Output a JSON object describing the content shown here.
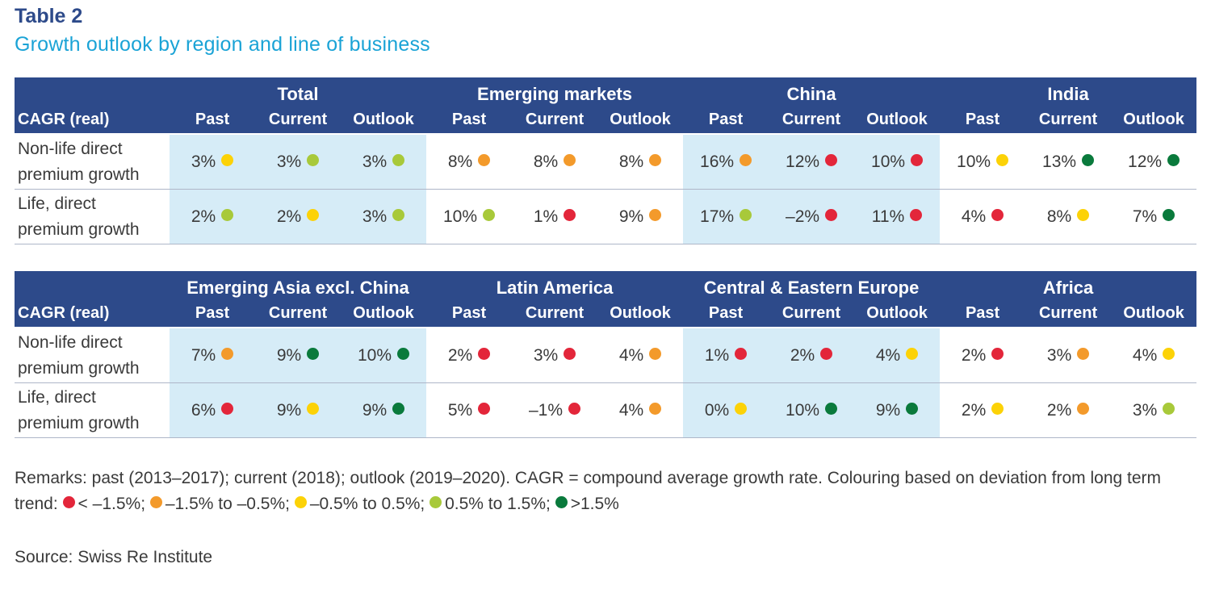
{
  "title": {
    "label": "Table 2",
    "subtitle": "Growth outlook by region and line of business"
  },
  "colors": {
    "header_bg": "#2d4a8a",
    "title_label": "#2d4a8a",
    "subtitle": "#1aa3d6",
    "shaded_cell": "#d6ecf7",
    "red": "#e3263a",
    "orange": "#f39a2b",
    "yellow": "#fcd207",
    "lightgreen": "#a8c93a",
    "darkgreen": "#0a7a3c"
  },
  "tables": [
    {
      "cagr_label": "CAGR (real)",
      "periods": [
        "Past",
        "Current",
        "Outlook"
      ],
      "regions": [
        {
          "name": "Total",
          "rows": [
            [
              {
                "value": "3%",
                "color": "yellow"
              },
              {
                "value": "3%",
                "color": "lightgreen"
              },
              {
                "value": "3%",
                "color": "lightgreen"
              }
            ],
            [
              {
                "value": "2%",
                "color": "lightgreen"
              },
              {
                "value": "2%",
                "color": "yellow"
              },
              {
                "value": "3%",
                "color": "lightgreen"
              }
            ]
          ]
        },
        {
          "name": "Emerging markets",
          "rows": [
            [
              {
                "value": "8%",
                "color": "orange"
              },
              {
                "value": "8%",
                "color": "orange"
              },
              {
                "value": "8%",
                "color": "orange"
              }
            ],
            [
              {
                "value": "10%",
                "color": "lightgreen"
              },
              {
                "value": "1%",
                "color": "red"
              },
              {
                "value": "9%",
                "color": "orange"
              }
            ]
          ]
        },
        {
          "name": "China",
          "rows": [
            [
              {
                "value": "16%",
                "color": "orange"
              },
              {
                "value": "12%",
                "color": "red"
              },
              {
                "value": "10%",
                "color": "red"
              }
            ],
            [
              {
                "value": "17%",
                "color": "lightgreen"
              },
              {
                "value": "–2%",
                "color": "red"
              },
              {
                "value": "11%",
                "color": "red"
              }
            ]
          ]
        },
        {
          "name": "India",
          "rows": [
            [
              {
                "value": "10%",
                "color": "yellow"
              },
              {
                "value": "13%",
                "color": "darkgreen"
              },
              {
                "value": "12%",
                "color": "darkgreen"
              }
            ],
            [
              {
                "value": "4%",
                "color": "red"
              },
              {
                "value": "8%",
                "color": "yellow"
              },
              {
                "value": "7%",
                "color": "darkgreen"
              }
            ]
          ]
        }
      ],
      "row_labels": [
        [
          "Non-life direct",
          "premium growth"
        ],
        [
          "Life, direct",
          "premium growth"
        ]
      ]
    },
    {
      "cagr_label": "CAGR (real)",
      "periods": [
        "Past",
        "Current",
        "Outlook"
      ],
      "regions": [
        {
          "name": "Emerging Asia excl. China",
          "rows": [
            [
              {
                "value": "7%",
                "color": "orange"
              },
              {
                "value": "9%",
                "color": "darkgreen"
              },
              {
                "value": "10%",
                "color": "darkgreen"
              }
            ],
            [
              {
                "value": "6%",
                "color": "red"
              },
              {
                "value": "9%",
                "color": "yellow"
              },
              {
                "value": "9%",
                "color": "darkgreen"
              }
            ]
          ]
        },
        {
          "name": "Latin America",
          "rows": [
            [
              {
                "value": "2%",
                "color": "red"
              },
              {
                "value": "3%",
                "color": "red"
              },
              {
                "value": "4%",
                "color": "orange"
              }
            ],
            [
              {
                "value": "5%",
                "color": "red"
              },
              {
                "value": "–1%",
                "color": "red"
              },
              {
                "value": "4%",
                "color": "orange"
              }
            ]
          ]
        },
        {
          "name": "Central & Eastern Europe",
          "rows": [
            [
              {
                "value": "1%",
                "color": "red"
              },
              {
                "value": "2%",
                "color": "red"
              },
              {
                "value": "4%",
                "color": "yellow"
              }
            ],
            [
              {
                "value": "0%",
                "color": "yellow"
              },
              {
                "value": "10%",
                "color": "darkgreen"
              },
              {
                "value": "9%",
                "color": "darkgreen"
              }
            ]
          ]
        },
        {
          "name": "Africa",
          "rows": [
            [
              {
                "value": "2%",
                "color": "red"
              },
              {
                "value": "3%",
                "color": "orange"
              },
              {
                "value": "4%",
                "color": "yellow"
              }
            ],
            [
              {
                "value": "2%",
                "color": "yellow"
              },
              {
                "value": "2%",
                "color": "orange"
              },
              {
                "value": "3%",
                "color": "lightgreen"
              }
            ]
          ]
        }
      ],
      "row_labels": [
        [
          "Non-life direct",
          "premium growth"
        ],
        [
          "Life, direct",
          "premium growth"
        ]
      ]
    }
  ],
  "remarks": {
    "text": "Remarks: past (2013–2017); current (2018); outlook (2019–2020). CAGR = compound average growth rate. Colouring based on deviation from long term trend: ",
    "legend": [
      {
        "color": "red",
        "label": "< –1.5%;"
      },
      {
        "color": "orange",
        "label": "–1.5% to –0.5%;"
      },
      {
        "color": "yellow",
        "label": "–0.5% to 0.5%;"
      },
      {
        "color": "lightgreen",
        "label": "0.5% to 1.5%;"
      },
      {
        "color": "darkgreen",
        "label": ">1.5%"
      }
    ]
  },
  "source": "Source: Swiss Re Institute"
}
